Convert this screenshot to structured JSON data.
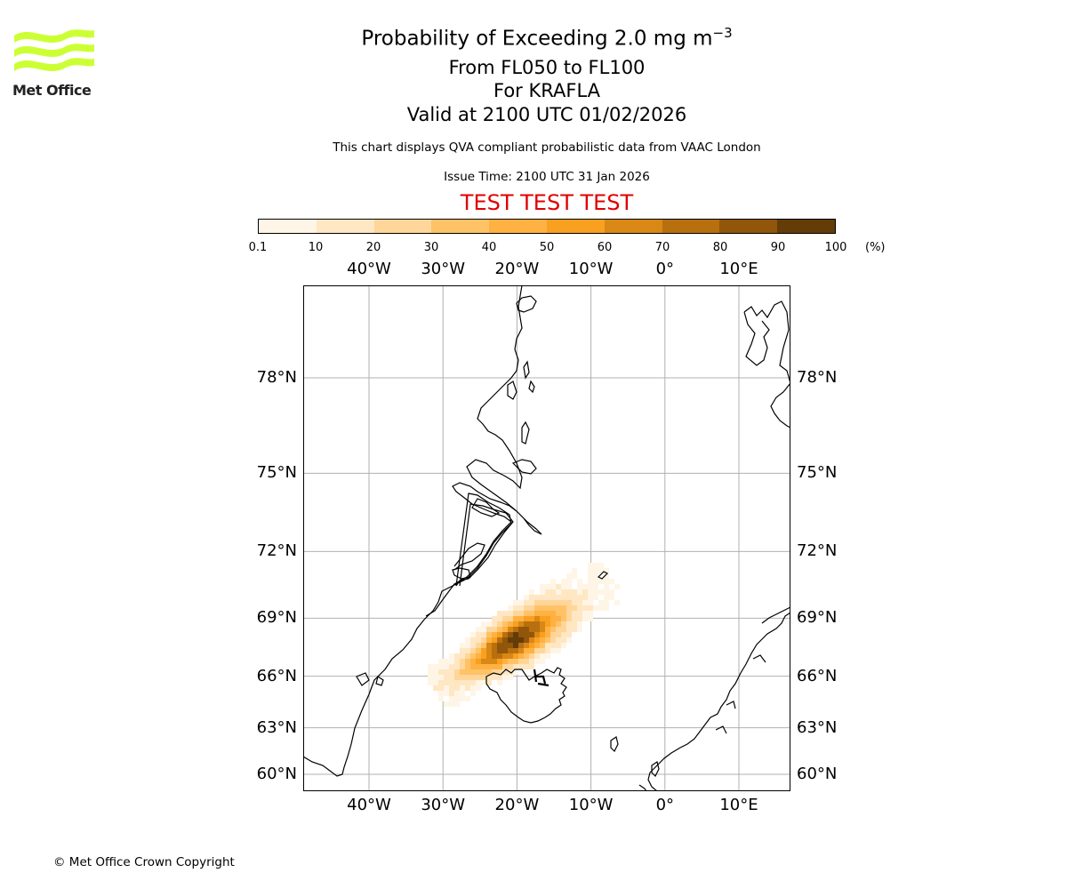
{
  "logo": {
    "text": "Met Office",
    "color": "#ccff33"
  },
  "title": {
    "main_prefix": "Probability of Exceeding 2.0 mg m",
    "main_sup": "−3",
    "levels": "From FL050 to FL100",
    "volcano": "For KRAFLA",
    "valid": "Valid at 2100 UTC 01/02/2026"
  },
  "subtitle": "This chart displays QVA compliant probabilistic data from VAAC London",
  "issue_time": "Issue Time: 2100 UTC 31 Jan 2026",
  "test_banner": "TEST TEST TEST",
  "colorbar": {
    "ticks": [
      "0.1",
      "10",
      "20",
      "30",
      "40",
      "50",
      "60",
      "70",
      "80",
      "90",
      "100"
    ],
    "unit": "(%)",
    "colors": [
      "#fff5e6",
      "#ffe7c4",
      "#ffd699",
      "#ffc266",
      "#ffb142",
      "#f9a020",
      "#d98715",
      "#b8700f",
      "#915609",
      "#633c08"
    ]
  },
  "map": {
    "lon_labels": [
      "40°W",
      "30°W",
      "20°W",
      "10°W",
      "0°",
      "10°E"
    ],
    "lat_labels": [
      "78°N",
      "75°N",
      "72°N",
      "69°N",
      "66°N",
      "63°N",
      "60°N"
    ],
    "lon_values": [
      -40,
      -30,
      -20,
      -10,
      0,
      10
    ],
    "lat_values": [
      78,
      75,
      72,
      69,
      66,
      63,
      60
    ],
    "grid_color": "#b0b0b0"
  },
  "copyright": "© Met Office Crown Copyright"
}
